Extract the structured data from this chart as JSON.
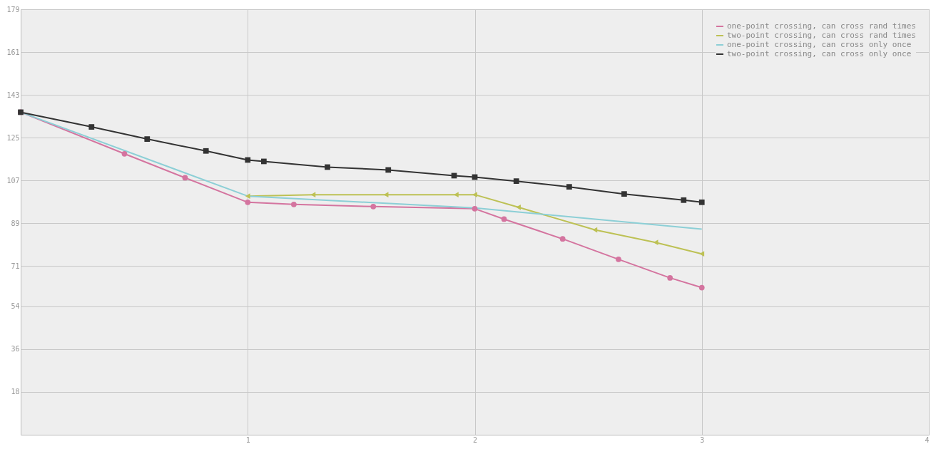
{
  "chart_data": {
    "type": "line",
    "xlim": [
      0,
      4
    ],
    "xticks": [
      1,
      2,
      3,
      4
    ],
    "ylim": [
      0,
      179
    ],
    "yticks": [
      18,
      36,
      54,
      71,
      89,
      107,
      125,
      143,
      161,
      179
    ],
    "grid": true,
    "legend": "top right",
    "line_style": "solid",
    "series": [
      {
        "name": "one-point crossing, can cross rand times",
        "color": "#d4749f",
        "marker": "circle",
        "x": [
          0,
          0.457,
          0.724,
          1.0,
          1.203,
          1.553,
          2.0,
          2.129,
          2.387,
          2.633,
          2.86,
          3.0
        ],
        "values": [
          135.7,
          118.2,
          108.1,
          97.8,
          96.9,
          96.0,
          95.1,
          90.7,
          82.4,
          73.8,
          66.0,
          61.9
        ]
      },
      {
        "name": "two-point crossing, can cross rand times",
        "color": "#bdc154",
        "marker": "triangle",
        "x": [
          1.0,
          1.288,
          1.609,
          1.918,
          2.0,
          2.192,
          2.529,
          2.797,
          3.0
        ],
        "values": [
          100.4,
          101.0,
          101.0,
          101.0,
          101.0,
          95.7,
          86.2,
          80.9,
          76.1
        ]
      },
      {
        "name": "one-point crossing, can cross only once",
        "color": "#8ccfd6",
        "marker": "none",
        "x": [
          0,
          1.0,
          2.0,
          3.0
        ],
        "values": [
          135.7,
          100.4,
          95.4,
          86.5
        ]
      },
      {
        "name": "two-point crossing, can cross only once",
        "color": "#333333",
        "marker": "square",
        "x": [
          0,
          0.312,
          0.557,
          0.816,
          1.0,
          1.071,
          1.351,
          1.619,
          1.909,
          2.0,
          2.183,
          2.416,
          2.658,
          2.92,
          3.0
        ],
        "values": [
          135.7,
          129.5,
          124.4,
          119.4,
          115.6,
          115.0,
          112.6,
          111.4,
          109.0,
          108.4,
          106.7,
          104.3,
          101.3,
          98.7,
          97.8
        ]
      }
    ]
  }
}
